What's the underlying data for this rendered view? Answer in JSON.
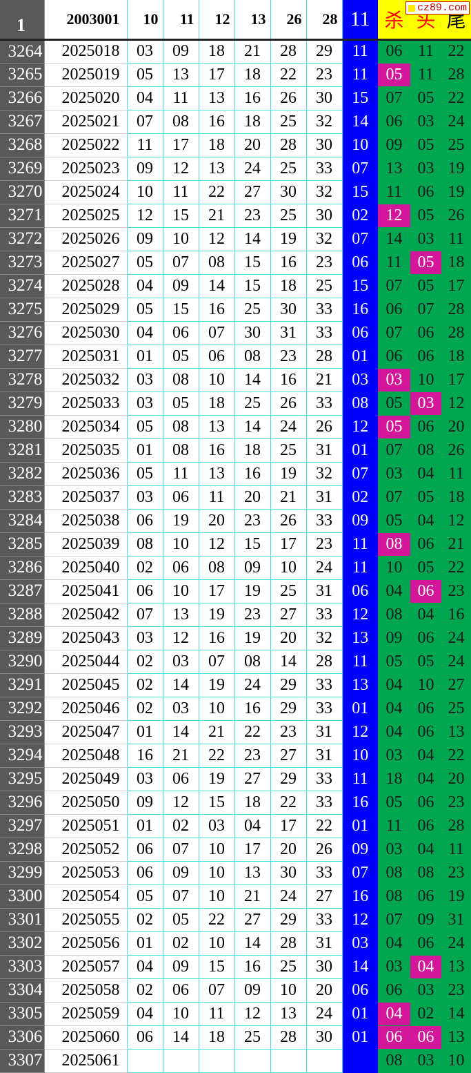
{
  "header": {
    "index": "1",
    "period": "2003001",
    "nums": [
      "10",
      "11",
      "12",
      "13",
      "26",
      "28"
    ],
    "special": "11",
    "labels": [
      "杀",
      "头",
      "尾"
    ]
  },
  "watermark": "cz89.com",
  "colors": {
    "index_bg": "#595959",
    "special_bg": "#0000ff",
    "kill_bg": "#00a650",
    "highlight": "#d4169a",
    "header_yellow": "#ffff00"
  },
  "rows": [
    {
      "i": "3264",
      "p": "2025018",
      "n": [
        "03",
        "09",
        "18",
        "21",
        "28",
        "29"
      ],
      "s": "11",
      "k": [
        "06",
        "11",
        "22"
      ],
      "hl": []
    },
    {
      "i": "3265",
      "p": "2025019",
      "n": [
        "05",
        "13",
        "17",
        "18",
        "22",
        "23"
      ],
      "s": "11",
      "k": [
        "05",
        "11",
        "28"
      ],
      "hl": [
        0
      ]
    },
    {
      "i": "3266",
      "p": "2025020",
      "n": [
        "04",
        "11",
        "13",
        "16",
        "26",
        "30"
      ],
      "s": "15",
      "k": [
        "07",
        "05",
        "22"
      ],
      "hl": []
    },
    {
      "i": "3267",
      "p": "2025021",
      "n": [
        "07",
        "08",
        "16",
        "18",
        "25",
        "32"
      ],
      "s": "14",
      "k": [
        "06",
        "03",
        "24"
      ],
      "hl": []
    },
    {
      "i": "3268",
      "p": "2025022",
      "n": [
        "11",
        "17",
        "18",
        "20",
        "28",
        "30"
      ],
      "s": "10",
      "k": [
        "09",
        "05",
        "25"
      ],
      "hl": []
    },
    {
      "i": "3269",
      "p": "2025023",
      "n": [
        "09",
        "12",
        "13",
        "24",
        "25",
        "33"
      ],
      "s": "07",
      "k": [
        "13",
        "03",
        "19"
      ],
      "hl": []
    },
    {
      "i": "3270",
      "p": "2025024",
      "n": [
        "10",
        "11",
        "22",
        "27",
        "30",
        "32"
      ],
      "s": "15",
      "k": [
        "11",
        "06",
        "19"
      ],
      "hl": []
    },
    {
      "i": "3271",
      "p": "2025025",
      "n": [
        "12",
        "15",
        "21",
        "23",
        "25",
        "30"
      ],
      "s": "02",
      "k": [
        "12",
        "05",
        "26"
      ],
      "hl": [
        0
      ]
    },
    {
      "i": "3272",
      "p": "2025026",
      "n": [
        "09",
        "10",
        "12",
        "14",
        "19",
        "32"
      ],
      "s": "07",
      "k": [
        "14",
        "03",
        "11"
      ],
      "hl": []
    },
    {
      "i": "3273",
      "p": "2025027",
      "n": [
        "05",
        "07",
        "08",
        "15",
        "16",
        "23"
      ],
      "s": "06",
      "k": [
        "11",
        "05",
        "18"
      ],
      "hl": [
        1
      ]
    },
    {
      "i": "3274",
      "p": "2025028",
      "n": [
        "04",
        "09",
        "14",
        "15",
        "18",
        "25"
      ],
      "s": "15",
      "k": [
        "07",
        "05",
        "17"
      ],
      "hl": []
    },
    {
      "i": "3275",
      "p": "2025029",
      "n": [
        "05",
        "15",
        "16",
        "25",
        "30",
        "33"
      ],
      "s": "16",
      "k": [
        "06",
        "07",
        "28"
      ],
      "hl": []
    },
    {
      "i": "3276",
      "p": "2025030",
      "n": [
        "04",
        "06",
        "07",
        "30",
        "31",
        "33"
      ],
      "s": "06",
      "k": [
        "07",
        "06",
        "28"
      ],
      "hl": []
    },
    {
      "i": "3277",
      "p": "2025031",
      "n": [
        "01",
        "05",
        "06",
        "08",
        "23",
        "28"
      ],
      "s": "01",
      "k": [
        "06",
        "06",
        "18"
      ],
      "hl": []
    },
    {
      "i": "3278",
      "p": "2025032",
      "n": [
        "03",
        "08",
        "10",
        "14",
        "16",
        "21"
      ],
      "s": "03",
      "k": [
        "03",
        "10",
        "17"
      ],
      "hl": [
        0
      ]
    },
    {
      "i": "3279",
      "p": "2025033",
      "n": [
        "03",
        "05",
        "18",
        "25",
        "26",
        "33"
      ],
      "s": "08",
      "k": [
        "05",
        "03",
        "12"
      ],
      "hl": [
        1
      ]
    },
    {
      "i": "3280",
      "p": "2025034",
      "n": [
        "05",
        "08",
        "13",
        "14",
        "24",
        "26"
      ],
      "s": "12",
      "k": [
        "05",
        "06",
        "20"
      ],
      "hl": [
        0
      ]
    },
    {
      "i": "3281",
      "p": "2025035",
      "n": [
        "01",
        "08",
        "16",
        "18",
        "25",
        "31"
      ],
      "s": "01",
      "k": [
        "07",
        "08",
        "26"
      ],
      "hl": []
    },
    {
      "i": "3282",
      "p": "2025036",
      "n": [
        "05",
        "11",
        "13",
        "16",
        "19",
        "32"
      ],
      "s": "07",
      "k": [
        "03",
        "04",
        "11"
      ],
      "hl": []
    },
    {
      "i": "3283",
      "p": "2025037",
      "n": [
        "03",
        "06",
        "11",
        "20",
        "21",
        "31"
      ],
      "s": "02",
      "k": [
        "07",
        "05",
        "18"
      ],
      "hl": []
    },
    {
      "i": "3284",
      "p": "2025038",
      "n": [
        "06",
        "19",
        "20",
        "23",
        "26",
        "33"
      ],
      "s": "09",
      "k": [
        "05",
        "04",
        "12"
      ],
      "hl": []
    },
    {
      "i": "3285",
      "p": "2025039",
      "n": [
        "08",
        "10",
        "12",
        "15",
        "17",
        "23"
      ],
      "s": "11",
      "k": [
        "08",
        "06",
        "21"
      ],
      "hl": [
        0
      ]
    },
    {
      "i": "3286",
      "p": "2025040",
      "n": [
        "02",
        "06",
        "08",
        "09",
        "10",
        "24"
      ],
      "s": "11",
      "k": [
        "10",
        "05",
        "22"
      ],
      "hl": []
    },
    {
      "i": "3287",
      "p": "2025041",
      "n": [
        "06",
        "10",
        "17",
        "19",
        "25",
        "31"
      ],
      "s": "06",
      "k": [
        "04",
        "06",
        "23"
      ],
      "hl": [
        1
      ]
    },
    {
      "i": "3288",
      "p": "2025042",
      "n": [
        "07",
        "13",
        "19",
        "23",
        "27",
        "33"
      ],
      "s": "12",
      "k": [
        "08",
        "04",
        "16"
      ],
      "hl": []
    },
    {
      "i": "3289",
      "p": "2025043",
      "n": [
        "03",
        "12",
        "16",
        "19",
        "20",
        "32"
      ],
      "s": "13",
      "k": [
        "09",
        "06",
        "24"
      ],
      "hl": []
    },
    {
      "i": "3290",
      "p": "2025044",
      "n": [
        "02",
        "03",
        "07",
        "08",
        "14",
        "28"
      ],
      "s": "11",
      "k": [
        "05",
        "05",
        "24"
      ],
      "hl": []
    },
    {
      "i": "3291",
      "p": "2025045",
      "n": [
        "02",
        "14",
        "19",
        "24",
        "29",
        "33"
      ],
      "s": "13",
      "k": [
        "04",
        "10",
        "27"
      ],
      "hl": []
    },
    {
      "i": "3292",
      "p": "2025046",
      "n": [
        "02",
        "03",
        "10",
        "16",
        "29",
        "33"
      ],
      "s": "01",
      "k": [
        "04",
        "06",
        "25"
      ],
      "hl": []
    },
    {
      "i": "3293",
      "p": "2025047",
      "n": [
        "01",
        "14",
        "21",
        "22",
        "23",
        "31"
      ],
      "s": "12",
      "k": [
        "04",
        "06",
        "13"
      ],
      "hl": []
    },
    {
      "i": "3294",
      "p": "2025048",
      "n": [
        "16",
        "21",
        "22",
        "23",
        "27",
        "31"
      ],
      "s": "10",
      "k": [
        "03",
        "04",
        "22"
      ],
      "hl": []
    },
    {
      "i": "3295",
      "p": "2025049",
      "n": [
        "03",
        "06",
        "19",
        "27",
        "29",
        "33"
      ],
      "s": "11",
      "k": [
        "18",
        "04",
        "20"
      ],
      "hl": []
    },
    {
      "i": "3296",
      "p": "2025050",
      "n": [
        "09",
        "12",
        "15",
        "18",
        "22",
        "33"
      ],
      "s": "16",
      "k": [
        "05",
        "06",
        "23"
      ],
      "hl": []
    },
    {
      "i": "3297",
      "p": "2025051",
      "n": [
        "01",
        "02",
        "03",
        "04",
        "17",
        "22"
      ],
      "s": "01",
      "k": [
        "11",
        "06",
        "28"
      ],
      "hl": []
    },
    {
      "i": "3298",
      "p": "2025052",
      "n": [
        "06",
        "07",
        "10",
        "17",
        "20",
        "26"
      ],
      "s": "09",
      "k": [
        "03",
        "04",
        "11"
      ],
      "hl": []
    },
    {
      "i": "3299",
      "p": "2025053",
      "n": [
        "06",
        "09",
        "10",
        "13",
        "30",
        "33"
      ],
      "s": "07",
      "k": [
        "08",
        "08",
        "23"
      ],
      "hl": []
    },
    {
      "i": "3300",
      "p": "2025054",
      "n": [
        "05",
        "07",
        "10",
        "21",
        "24",
        "27"
      ],
      "s": "16",
      "k": [
        "08",
        "06",
        "19"
      ],
      "hl": []
    },
    {
      "i": "3301",
      "p": "2025055",
      "n": [
        "02",
        "05",
        "22",
        "27",
        "29",
        "33"
      ],
      "s": "12",
      "k": [
        "07",
        "09",
        "31"
      ],
      "hl": []
    },
    {
      "i": "3302",
      "p": "2025056",
      "n": [
        "01",
        "02",
        "10",
        "14",
        "28",
        "31"
      ],
      "s": "03",
      "k": [
        "04",
        "06",
        "24"
      ],
      "hl": []
    },
    {
      "i": "3303",
      "p": "2025057",
      "n": [
        "04",
        "09",
        "15",
        "16",
        "25",
        "30"
      ],
      "s": "14",
      "k": [
        "03",
        "04",
        "13"
      ],
      "hl": [
        1
      ]
    },
    {
      "i": "3304",
      "p": "2025058",
      "n": [
        "02",
        "06",
        "07",
        "09",
        "10",
        "20"
      ],
      "s": "06",
      "k": [
        "06",
        "03",
        "23"
      ],
      "hl": []
    },
    {
      "i": "3305",
      "p": "2025059",
      "n": [
        "04",
        "10",
        "11",
        "12",
        "13",
        "24"
      ],
      "s": "01",
      "k": [
        "04",
        "02",
        "14"
      ],
      "hl": [
        0
      ]
    },
    {
      "i": "3306",
      "p": "2025060",
      "n": [
        "06",
        "14",
        "18",
        "25",
        "28",
        "30"
      ],
      "s": "01",
      "k": [
        "06",
        "06",
        "13"
      ],
      "hl": [
        0,
        1
      ]
    },
    {
      "i": "3307",
      "p": "2025061",
      "n": [
        "",
        "",
        "",
        "",
        "",
        ""
      ],
      "s": "",
      "k": [
        "08",
        "03",
        "10"
      ],
      "hl": []
    }
  ]
}
